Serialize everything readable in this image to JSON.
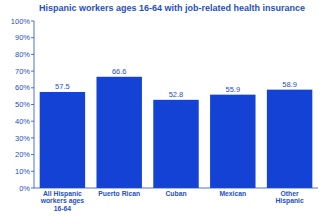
{
  "chart_data": {
    "type": "bar",
    "title": "Hispanic workers ages 16-64 with job-related health insurance",
    "categories": [
      "All Hispanic workers ages 16-64",
      "Puerto Rican",
      "Cuban",
      "Mexican",
      "Other Hispanic"
    ],
    "values": [
      57.5,
      66.6,
      52.8,
      55.9,
      58.9
    ],
    "color": "#1442d4",
    "ylim": [
      0,
      100
    ],
    "yticks": [
      {
        "value": 0,
        "label": "0%"
      },
      {
        "value": 10,
        "label": "10%"
      },
      {
        "value": 20,
        "label": "20%"
      },
      {
        "value": 30,
        "label": "30%"
      },
      {
        "value": 40,
        "label": "40%"
      },
      {
        "value": 50,
        "label": "50%"
      },
      {
        "value": 60,
        "label": "60%"
      },
      {
        "value": 70,
        "label": "70%"
      },
      {
        "value": 80,
        "label": "80%"
      },
      {
        "value": 90,
        "label": "90%"
      },
      {
        "value": 100,
        "label": "100%"
      }
    ],
    "grid": false,
    "data_labels": true
  }
}
